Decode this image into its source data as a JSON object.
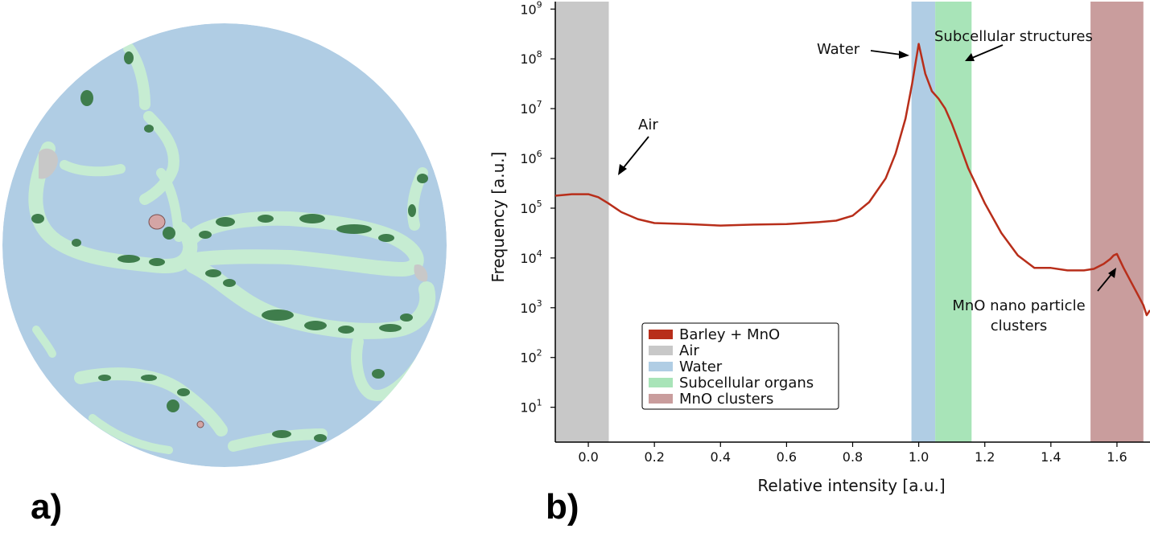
{
  "panels": {
    "a_label": "a)",
    "b_label": "b)"
  },
  "segmentation": {
    "colors": {
      "water": "#b0cde4",
      "subcellular": "#c6ecd2",
      "organelle_dark": "#3f7d4c",
      "air": "#c8c8c8",
      "mno": "#d4a5a5"
    }
  },
  "chart_data": {
    "type": "line",
    "title": "",
    "xlabel": "Relative intensity [a.u.]",
    "ylabel": "Frequency [a.u.]",
    "xlim": [
      -0.1,
      1.7
    ],
    "ylim_log10": [
      0.3,
      9.15
    ],
    "yscale": "log",
    "x_ticks": [
      0.0,
      0.2,
      0.4,
      0.6,
      0.8,
      1.0,
      1.2,
      1.4,
      1.6
    ],
    "x_tick_labels": [
      "0.0",
      "0.2",
      "0.4",
      "0.6",
      "0.8",
      "1.0",
      "1.2",
      "1.4",
      "1.6"
    ],
    "y_ticks": [
      {
        "base": "10",
        "exp": "1",
        "value": 1
      },
      {
        "base": "10",
        "exp": "2",
        "value": 2
      },
      {
        "base": "10",
        "exp": "3",
        "value": 3
      },
      {
        "base": "10",
        "exp": "4",
        "value": 4
      },
      {
        "base": "10",
        "exp": "5",
        "value": 5
      },
      {
        "base": "10",
        "exp": "6",
        "value": 6
      },
      {
        "base": "10",
        "exp": "7",
        "value": 7
      },
      {
        "base": "10",
        "exp": "8",
        "value": 8
      },
      {
        "base": "10",
        "exp": "9",
        "value": 9
      }
    ],
    "bands": [
      {
        "name": "Air",
        "x0": -0.1,
        "x1": 0.062,
        "color": "#c8c8c8"
      },
      {
        "name": "Water",
        "x0": 0.978,
        "x1": 1.05,
        "color": "#b0cde4"
      },
      {
        "name": "Subcellular organs",
        "x0": 1.05,
        "x1": 1.16,
        "color": "#a8e4b8"
      },
      {
        "name": "MnO clusters",
        "x0": 1.52,
        "x1": 1.68,
        "color": "#c99d9d"
      }
    ],
    "series": [
      {
        "name": "Barley + MnO",
        "color": "#b82e1a",
        "x": [
          -0.1,
          -0.05,
          0.0,
          0.03,
          0.06,
          0.1,
          0.15,
          0.2,
          0.3,
          0.4,
          0.5,
          0.6,
          0.7,
          0.75,
          0.8,
          0.85,
          0.9,
          0.93,
          0.96,
          0.98,
          1.0,
          1.02,
          1.04,
          1.06,
          1.08,
          1.1,
          1.12,
          1.15,
          1.2,
          1.25,
          1.3,
          1.35,
          1.4,
          1.45,
          1.5,
          1.53,
          1.56,
          1.58,
          1.59,
          1.6,
          1.62,
          1.64,
          1.66,
          1.68,
          1.69,
          1.7
        ],
        "log10_y": [
          5.25,
          5.28,
          5.28,
          5.22,
          5.1,
          4.92,
          4.78,
          4.7,
          4.68,
          4.65,
          4.67,
          4.68,
          4.72,
          4.75,
          4.85,
          5.12,
          5.6,
          6.1,
          6.8,
          7.5,
          8.3,
          7.7,
          7.35,
          7.2,
          7.0,
          6.7,
          6.35,
          5.8,
          5.1,
          4.5,
          4.05,
          3.8,
          3.8,
          3.75,
          3.75,
          3.78,
          3.88,
          3.98,
          4.05,
          4.08,
          3.8,
          3.55,
          3.3,
          3.05,
          2.85,
          2.95
        ]
      }
    ],
    "legend": {
      "placement": "lower-left",
      "entries": [
        {
          "label": "Barley + MnO",
          "color": "#b82e1a"
        },
        {
          "label": "Air",
          "color": "#c8c8c8"
        },
        {
          "label": "Water",
          "color": "#b0cde4"
        },
        {
          "label": "Subcellular organs",
          "color": "#a8e4b8"
        },
        {
          "label": "MnO clusters",
          "color": "#c99d9d"
        }
      ]
    },
    "annotations": {
      "air": "Air",
      "water": "Water",
      "subcellular": "Subcellular structures",
      "mno_line1": "MnO nano particle",
      "mno_line2": "clusters"
    }
  }
}
